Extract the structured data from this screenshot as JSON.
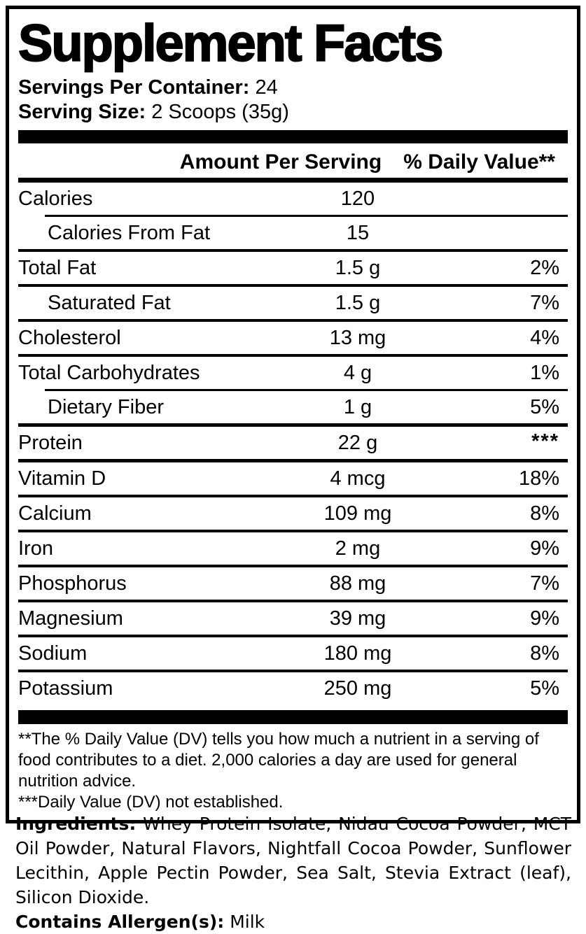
{
  "colors": {
    "ink": "#000000",
    "background": "#ffffff"
  },
  "header": {
    "title": "Supplement Facts",
    "servings_per_container_label": "Servings Per Container:",
    "servings_per_container_value": "24",
    "serving_size_label": "Serving Size:",
    "serving_size_value": "2 Scoops (35g)"
  },
  "table": {
    "columns": {
      "amount": "Amount Per Serving",
      "daily_value": "% Daily Value**"
    },
    "rows": [
      {
        "name": "Calories",
        "amount": "120",
        "dv": "",
        "indent": false
      },
      {
        "name": "Calories From Fat",
        "amount": "15",
        "dv": "",
        "indent": true
      },
      {
        "name": "Total Fat",
        "amount": "1.5 g",
        "dv": "2%",
        "indent": false
      },
      {
        "name": "Saturated Fat",
        "amount": "1.5 g",
        "dv": "7%",
        "indent": true
      },
      {
        "name": "Cholesterol",
        "amount": "13 mg",
        "dv": "4%",
        "indent": false
      },
      {
        "name": "Total Carbohydrates",
        "amount": "4 g",
        "dv": "1%",
        "indent": false
      },
      {
        "name": "Dietary Fiber",
        "amount": "1 g",
        "dv": "5%",
        "indent": true
      },
      {
        "name": "Protein",
        "amount": "22 g",
        "dv": "***",
        "indent": false
      },
      {
        "name": "Vitamin D",
        "amount": "4 mcg",
        "dv": "18%",
        "indent": false
      },
      {
        "name": "Calcium",
        "amount": "109 mg",
        "dv": "8%",
        "indent": false
      },
      {
        "name": "Iron",
        "amount": "2 mg",
        "dv": "9%",
        "indent": false
      },
      {
        "name": "Phosphorus",
        "amount": "88 mg",
        "dv": "7%",
        "indent": false
      },
      {
        "name": "Magnesium",
        "amount": "39 mg",
        "dv": "9%",
        "indent": false
      },
      {
        "name": "Sodium",
        "amount": "180 mg",
        "dv": "8%",
        "indent": false
      },
      {
        "name": "Potassium",
        "amount": "250 mg",
        "dv": "5%",
        "indent": false
      }
    ]
  },
  "footnotes": {
    "daily_value_note": "**The % Daily Value (DV) tells you how much a nutrient in a serving of food contributes to a diet. 2,000 calories a day are used for general nutrition advice.",
    "not_established_note": "***Daily Value (DV) not established."
  },
  "ingredients": {
    "label": "Ingredients:",
    "list": "Whey Protein Isolate, Nidau Cocoa Powder, MCT Oil Powder, Natural Flavors, Nightfall Cocoa Powder, Sunflower Lecithin, Apple Pectin Powder, Sea Salt, Stevia Extract (leaf), Silicon Dioxide.",
    "allergen_label": "Contains Allergen(s):",
    "allergen_value": "Milk"
  }
}
